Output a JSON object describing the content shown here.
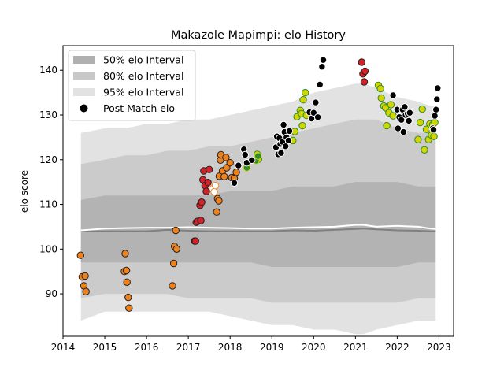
{
  "chart_data": {
    "type": "scatter",
    "title": "Makazole Mapimpi: elo History",
    "xlabel": "",
    "ylabel": "elo score",
    "xlim": [
      2014.0,
      2023.35
    ],
    "ylim": [
      80.5,
      145.5
    ],
    "xticks": [
      2014,
      2015,
      2016,
      2017,
      2018,
      2019,
      2020,
      2021,
      2022,
      2023
    ],
    "yticks": [
      90,
      100,
      110,
      120,
      130,
      140
    ],
    "grid": false,
    "legend_position": "top-left",
    "legend": [
      {
        "label": "50% elo Interval",
        "kind": "band",
        "color": "#b0b0b0"
      },
      {
        "label": "80% elo Interval",
        "kind": "band",
        "color": "#c8c8c8"
      },
      {
        "label": "95% elo Interval",
        "kind": "band",
        "color": "#e2e2e2"
      },
      {
        "label": "Post Match elo",
        "kind": "marker",
        "color": "#000000"
      }
    ],
    "colors": {
      "band95": "#e2e2e2",
      "band80": "#cbcbcb",
      "band50": "#b3b3b3",
      "median_line": "#808080",
      "mean_line": "#ffffff",
      "orange": "#f0821e",
      "red": "#d62028",
      "yellow": "#d4d400",
      "green": "#2e8b2e",
      "black": "#000000"
    },
    "bands": {
      "x": [
        2014.43,
        2015.0,
        2015.5,
        2016.0,
        2016.5,
        2017.0,
        2017.5,
        2018.0,
        2018.5,
        2019.0,
        2019.5,
        2020.0,
        2020.5,
        2021.0,
        2021.2,
        2021.5,
        2022.0,
        2022.5,
        2022.8,
        2022.92
      ],
      "p95_upper": [
        126,
        127,
        127,
        128,
        128,
        129,
        129,
        130,
        131,
        132,
        133,
        135,
        136,
        137,
        137,
        136,
        134,
        133,
        132,
        132
      ],
      "p95_lower": [
        84,
        86,
        86,
        86,
        86,
        86,
        86,
        85,
        84,
        83,
        83,
        82,
        82,
        81,
        81,
        82,
        83,
        84,
        84,
        84
      ],
      "p80_upper": [
        119,
        120,
        121,
        121,
        122,
        122,
        123,
        123,
        124,
        125,
        126,
        127,
        128,
        129,
        129,
        129,
        127,
        126,
        126,
        125
      ],
      "p80_lower": [
        89,
        90,
        90,
        90,
        90,
        89,
        89,
        89,
        89,
        88,
        88,
        88,
        88,
        88,
        88,
        88,
        88,
        89,
        89,
        89
      ],
      "p50_upper": [
        111,
        112,
        112,
        112,
        112,
        112,
        112,
        113,
        113,
        113,
        114,
        114,
        114,
        115,
        115,
        115,
        115,
        114,
        114,
        114
      ],
      "p50_lower": [
        97,
        97,
        97,
        97,
        97,
        97,
        97,
        97,
        97,
        96,
        96,
        96,
        96,
        96,
        96,
        96,
        96,
        97,
        97,
        97
      ],
      "median": [
        104,
        104,
        104,
        104,
        104.3,
        104.1,
        104.0,
        104.0,
        104.0,
        104.0,
        104.2,
        104.1,
        104.3,
        104.5,
        104.6,
        104.4,
        104.2,
        104.1,
        104.0,
        104.0
      ],
      "mean": [
        104.2,
        104.6,
        104.7,
        104.8,
        104.8,
        104.9,
        104.8,
        104.7,
        104.6,
        104.6,
        104.8,
        104.9,
        105.0,
        105.4,
        105.4,
        105.0,
        105.2,
        105.0,
        104.6,
        104.5
      ]
    },
    "series": [
      {
        "color": "orange",
        "hollow": false,
        "points": [
          [
            2014.42,
            98.6
          ],
          [
            2014.46,
            93.8
          ],
          [
            2014.5,
            91.8
          ],
          [
            2014.53,
            94.0
          ],
          [
            2014.55,
            90.5
          ],
          [
            2015.47,
            95.0
          ],
          [
            2015.49,
            99.0
          ],
          [
            2015.52,
            95.2
          ],
          [
            2015.53,
            92.6
          ],
          [
            2015.56,
            89.2
          ],
          [
            2015.58,
            86.8
          ],
          [
            2016.62,
            91.8
          ],
          [
            2016.65,
            96.8
          ],
          [
            2016.67,
            100.6
          ],
          [
            2016.7,
            104.2
          ],
          [
            2016.72,
            100.0
          ],
          [
            2017.68,
            108.3
          ],
          [
            2017.7,
            111.3
          ],
          [
            2017.73,
            110.8
          ],
          [
            2017.74,
            116.3
          ],
          [
            2017.77,
            119.9
          ],
          [
            2017.78,
            121.1
          ],
          [
            2017.82,
            117.5
          ],
          [
            2017.86,
            116.2
          ],
          [
            2017.9,
            120.5
          ],
          [
            2017.92,
            118.2
          ],
          [
            2018.0,
            119.3
          ],
          [
            2018.04,
            116.0
          ],
          [
            2018.1,
            115.8
          ],
          [
            2018.15,
            117.2
          ]
        ]
      },
      {
        "color": "orange",
        "hollow": true,
        "points": [
          [
            2017.58,
            113.5
          ],
          [
            2017.62,
            112.8
          ],
          [
            2017.65,
            114.2
          ]
        ]
      },
      {
        "color": "red",
        "hollow": false,
        "points": [
          [
            2017.15,
            101.8
          ],
          [
            2017.17,
            101.8
          ],
          [
            2017.19,
            106.0
          ],
          [
            2017.22,
            106.2
          ],
          [
            2017.28,
            109.8
          ],
          [
            2017.3,
            106.4
          ],
          [
            2017.32,
            110.5
          ],
          [
            2017.35,
            115.5
          ],
          [
            2017.37,
            117.5
          ],
          [
            2017.4,
            114.2
          ],
          [
            2017.43,
            112.9
          ],
          [
            2017.47,
            114.9
          ],
          [
            2017.5,
            117.8
          ],
          [
            2021.15,
            141.8
          ],
          [
            2021.18,
            139.2
          ],
          [
            2021.21,
            137.4
          ],
          [
            2021.23,
            139.8
          ]
        ]
      },
      {
        "color": "yellow",
        "hollow": false,
        "points": [
          [
            2018.65,
            121.2
          ],
          [
            2018.68,
            120.1
          ],
          [
            2019.5,
            124.3
          ],
          [
            2019.55,
            126.3
          ],
          [
            2019.6,
            129.6
          ],
          [
            2019.68,
            131.0
          ],
          [
            2019.71,
            130.3
          ],
          [
            2019.73,
            127.6
          ],
          [
            2019.75,
            133.4
          ],
          [
            2019.8,
            135.0
          ],
          [
            2019.83,
            129.9
          ],
          [
            2021.55,
            136.6
          ],
          [
            2021.6,
            135.9
          ],
          [
            2021.62,
            133.8
          ],
          [
            2021.68,
            132.0
          ],
          [
            2021.72,
            131.6
          ],
          [
            2021.75,
            127.6
          ],
          [
            2021.8,
            130.5
          ],
          [
            2021.85,
            132.3
          ],
          [
            2021.9,
            129.8
          ],
          [
            2022.5,
            124.5
          ],
          [
            2022.55,
            128.3
          ],
          [
            2022.6,
            131.3
          ],
          [
            2022.65,
            122.2
          ],
          [
            2022.7,
            126.8
          ],
          [
            2022.75,
            124.5
          ],
          [
            2022.78,
            128.0
          ],
          [
            2022.82,
            125.5
          ],
          [
            2022.85,
            127.8
          ],
          [
            2022.88,
            125.2
          ],
          [
            2022.9,
            128.3
          ]
        ]
      },
      {
        "color": "green",
        "hollow": false,
        "points": [
          [
            2018.4,
            118.2
          ],
          [
            2018.62,
            119.8
          ],
          [
            2018.67,
            120.8
          ]
        ]
      },
      {
        "color": "black",
        "hollow": false,
        "points": [
          [
            2018.1,
            114.8
          ],
          [
            2018.2,
            118.7
          ],
          [
            2018.33,
            122.3
          ],
          [
            2018.36,
            121.1
          ],
          [
            2018.4,
            119.3
          ],
          [
            2018.52,
            119.9
          ],
          [
            2019.1,
            122.8
          ],
          [
            2019.12,
            125.2
          ],
          [
            2019.15,
            121.2
          ],
          [
            2019.18,
            124.8
          ],
          [
            2019.2,
            123.5
          ],
          [
            2019.22,
            121.5
          ],
          [
            2019.25,
            124.0
          ],
          [
            2019.28,
            127.8
          ],
          [
            2019.3,
            126.2
          ],
          [
            2019.33,
            123.0
          ],
          [
            2019.35,
            125.0
          ],
          [
            2019.4,
            124.3
          ],
          [
            2019.42,
            126.4
          ],
          [
            2019.9,
            130.6
          ],
          [
            2019.95,
            129.2
          ],
          [
            2020.0,
            130.5
          ],
          [
            2020.05,
            132.8
          ],
          [
            2020.1,
            129.5
          ],
          [
            2020.15,
            136.8
          ],
          [
            2020.2,
            140.8
          ],
          [
            2020.23,
            142.3
          ],
          [
            2021.9,
            134.4
          ],
          [
            2022.0,
            131.2
          ],
          [
            2022.02,
            127.0
          ],
          [
            2022.05,
            129.5
          ],
          [
            2022.1,
            128.9
          ],
          [
            2022.13,
            131.2
          ],
          [
            2022.15,
            126.2
          ],
          [
            2022.18,
            131.8
          ],
          [
            2022.2,
            130.0
          ],
          [
            2022.25,
            130.3
          ],
          [
            2022.28,
            128.7
          ],
          [
            2022.3,
            130.5
          ],
          [
            2022.85,
            127.0
          ],
          [
            2022.87,
            126.7
          ],
          [
            2022.9,
            129.8
          ],
          [
            2022.93,
            131.2
          ],
          [
            2022.95,
            133.5
          ],
          [
            2022.97,
            136.0
          ]
        ]
      }
    ]
  }
}
